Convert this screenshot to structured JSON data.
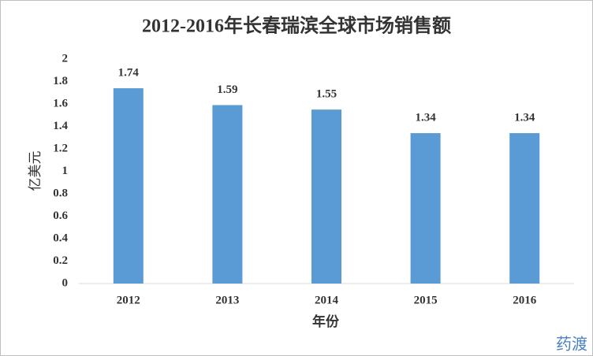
{
  "chart_data": {
    "type": "bar",
    "title": "2012-2016年长春瑞滨全球市场销售额",
    "x_label": "年份",
    "y_label": "亿美元",
    "categories": [
      "2012",
      "2013",
      "2014",
      "2015",
      "2016"
    ],
    "values": [
      1.74,
      1.59,
      1.55,
      1.34,
      1.34
    ],
    "color": "#5b9bd5",
    "ylim": [
      0,
      2
    ],
    "yticks": [
      0,
      0.2,
      0.4,
      0.6,
      0.8,
      1,
      1.2,
      1.4,
      1.6,
      1.8,
      2
    ],
    "grid": false,
    "annotation": "药渡"
  }
}
